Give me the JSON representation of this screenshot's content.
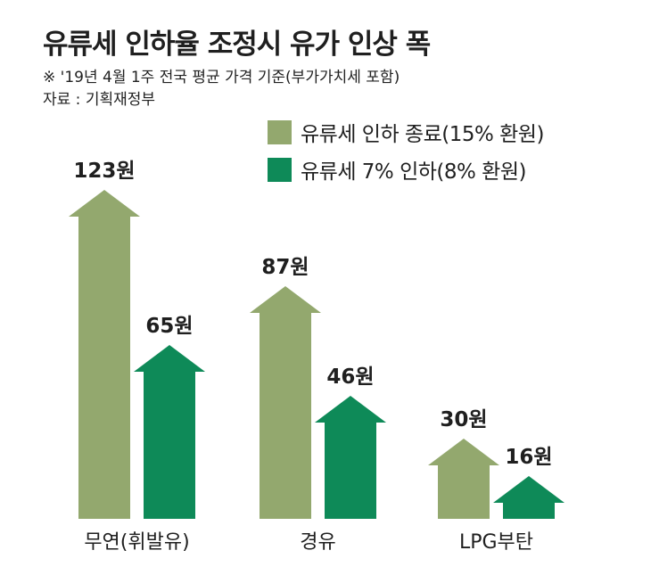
{
  "chart_data": {
    "type": "bar",
    "title": "유류세 인하율 조정시 유가 인상 폭",
    "notes": [
      "※ '19년 4월 1주 전국 평균 가격 기준(부가가치세 포함)",
      "자료 : 기획재정부"
    ],
    "unit": "원",
    "categories": [
      "무연(휘발유)",
      "경유",
      "LPG부탄"
    ],
    "series": [
      {
        "name": "유류세 인하 종료(15% 환원)",
        "color": "#93a86e",
        "values": [
          123,
          87,
          30
        ],
        "labels": [
          "123원",
          "87원",
          "30원"
        ]
      },
      {
        "name": "유류세 7% 인하(8% 환원)",
        "color": "#0e8a58",
        "values": [
          65,
          46,
          16
        ],
        "labels": [
          "65원",
          "46원",
          "16원"
        ]
      }
    ]
  }
}
